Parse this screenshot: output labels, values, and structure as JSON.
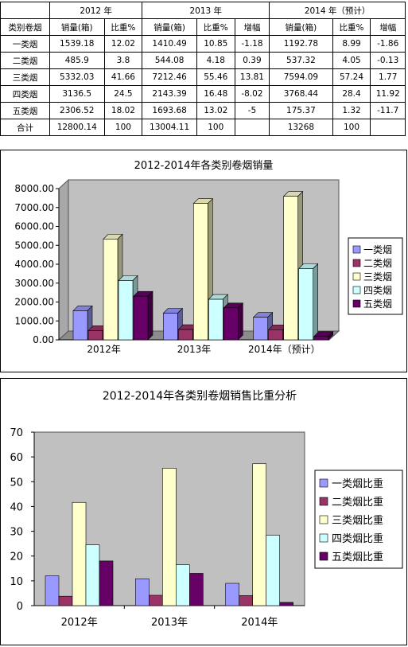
{
  "table": {
    "header_years": [
      "2012 年",
      "2013 年",
      "2014 年（预计）"
    ],
    "columns": [
      "类别卷烟",
      "销量(箱)",
      "比重%",
      "销量(箱)",
      "比重%",
      "增幅",
      "销量(箱)",
      "比重%",
      "增幅"
    ],
    "rows": [
      [
        "一类烟",
        "1539.18",
        "12.02",
        "1410.49",
        "10.85",
        "-1.18",
        "1192.78",
        "8.99",
        "-1.86"
      ],
      [
        "二类烟",
        "485.9",
        "3.8",
        "544.08",
        "4.18",
        "0.39",
        "537.32",
        "4.05",
        "-0.13"
      ],
      [
        "三类烟",
        "5332.03",
        "41.66",
        "7212.46",
        "55.46",
        "13.81",
        "7594.09",
        "57.24",
        "1.77"
      ],
      [
        "四类烟",
        "3136.5",
        "24.5",
        "2143.39",
        "16.48",
        "-8.02",
        "3768.44",
        "28.4",
        "11.92"
      ],
      [
        "五类烟",
        "2306.52",
        "18.02",
        "1693.68",
        "13.02",
        "-5",
        "175.37",
        "1.32",
        "-11.7"
      ],
      [
        "合计",
        "12800.14",
        "100",
        "13004.11",
        "100",
        "",
        "13268",
        "100",
        ""
      ]
    ]
  },
  "colors": {
    "series": [
      "#9999ff",
      "#993366",
      "#ffffcc",
      "#ccffff",
      "#660066"
    ],
    "plot_bg": "#c0c0c0"
  },
  "chart_data": [
    {
      "type": "bar",
      "title": "2012-2014年各类别卷烟销量",
      "categories": [
        "2012年",
        "2013年",
        "2014年（预计）"
      ],
      "series": [
        {
          "name": "一类烟",
          "values": [
            1539.18,
            1410.49,
            1192.78
          ]
        },
        {
          "name": "二类烟",
          "values": [
            485.9,
            544.08,
            537.32
          ]
        },
        {
          "name": "三类烟",
          "values": [
            5332.03,
            7212.46,
            7594.09
          ]
        },
        {
          "name": "四类烟",
          "values": [
            3136.5,
            2143.39,
            3768.44
          ]
        },
        {
          "name": "五类烟",
          "values": [
            2306.52,
            1693.68,
            175.37
          ]
        }
      ],
      "ylim": [
        0,
        8000
      ],
      "yticks": [
        "0.00",
        "1000.00",
        "2000.00",
        "3000.00",
        "4000.00",
        "5000.00",
        "6000.00",
        "7000.00",
        "8000.00"
      ],
      "grid": false,
      "legend": "right",
      "style": "3d"
    },
    {
      "type": "bar",
      "title": "2012-2014年各类别卷烟销售比重分析",
      "categories": [
        "2012年",
        "2013年",
        "2014年"
      ],
      "series": [
        {
          "name": "一类烟比重",
          "values": [
            12.02,
            10.85,
            8.99
          ]
        },
        {
          "name": "二类烟比重",
          "values": [
            3.8,
            4.18,
            4.05
          ]
        },
        {
          "name": "三类烟比重",
          "values": [
            41.66,
            55.46,
            57.24
          ]
        },
        {
          "name": "四类烟比重",
          "values": [
            24.5,
            16.48,
            28.4
          ]
        },
        {
          "name": "五类烟比重",
          "values": [
            18.02,
            13.02,
            1.32
          ]
        }
      ],
      "ylim": [
        0,
        70
      ],
      "yticks": [
        "0",
        "10",
        "20",
        "30",
        "40",
        "50",
        "60",
        "70"
      ],
      "grid": false,
      "legend": "right"
    }
  ]
}
